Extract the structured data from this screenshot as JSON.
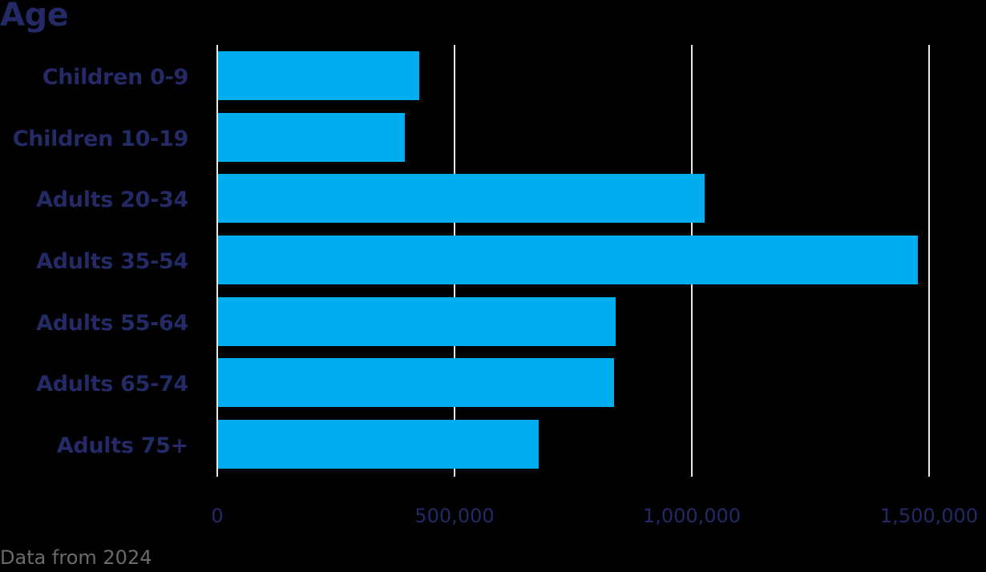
{
  "title": "Age",
  "footnote": "Data from 2024",
  "colors": {
    "bar": "#00aeef",
    "text": "#232a66",
    "gridline": "#e8e8e8",
    "background": "#000000",
    "footnote": "#6b6b6b"
  },
  "x_ticks": [
    "0",
    "500,000",
    "1,000,000",
    "1,500,000"
  ],
  "categories": [
    "Children 0-9",
    "Children 10-19",
    "Adults 20-34",
    "Adults 35-54",
    "Adults 55-64",
    "Adults 65-74",
    "Adults 75+"
  ],
  "chart_data": {
    "type": "bar",
    "orientation": "horizontal",
    "title": "Age",
    "subtitle": "",
    "xlabel": "",
    "ylabel": "",
    "categories": [
      "Children 0-9",
      "Children 10-19",
      "Adults 20-34",
      "Adults 35-54",
      "Adults 55-64",
      "Adults 65-74",
      "Adults 75+"
    ],
    "values": [
      424000,
      394000,
      1025000,
      1475000,
      838000,
      834000,
      676000
    ],
    "xlim": [
      0,
      1500000
    ],
    "x_ticks": [
      0,
      500000,
      1000000,
      1500000
    ],
    "x_tick_labels": [
      "0",
      "500,000",
      "1,000,000",
      "1,500,000"
    ],
    "grid": "vertical",
    "legend": "none",
    "annotations": [
      "Data from 2024"
    ]
  }
}
